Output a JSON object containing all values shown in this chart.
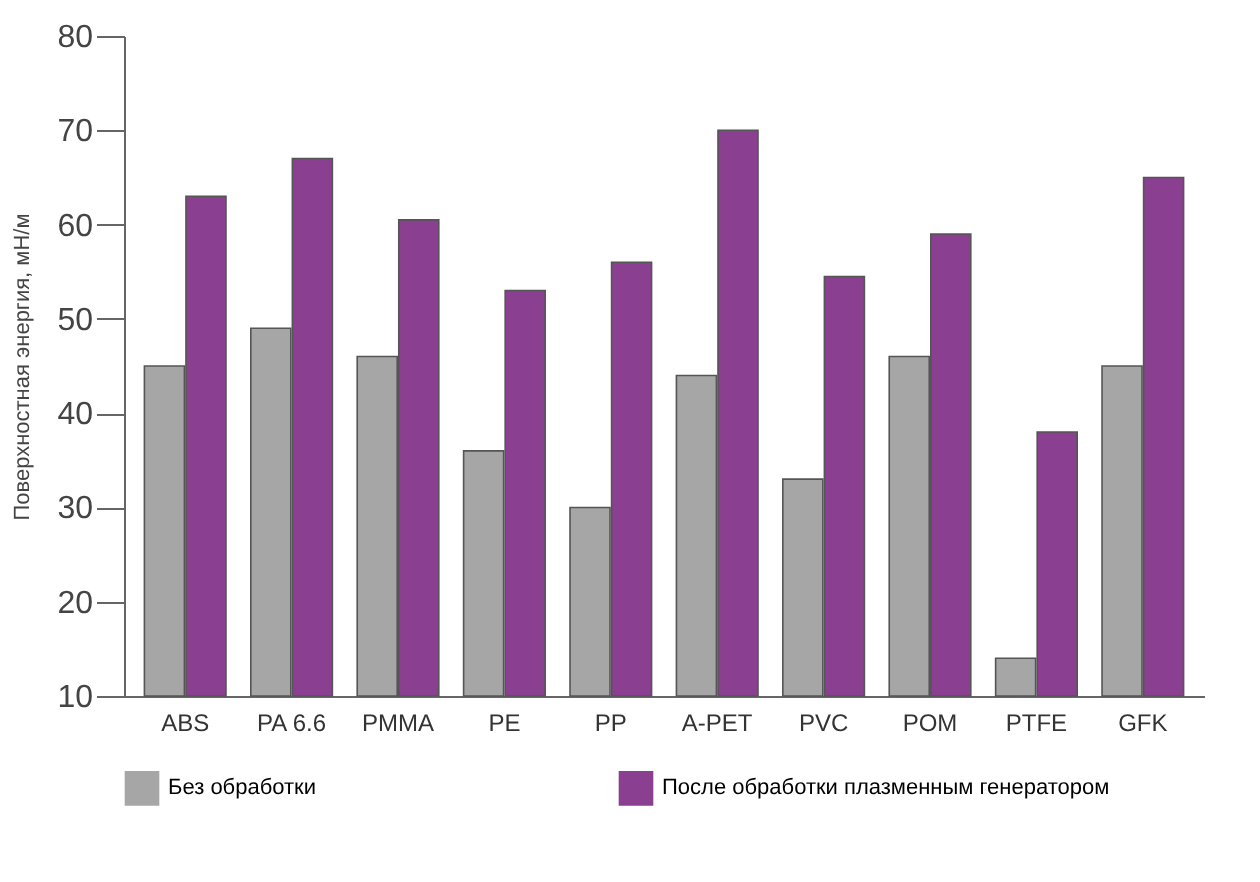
{
  "chart_data": {
    "type": "bar",
    "ylabel": "Поверхностная энергия, мН/м",
    "categories": [
      "ABS",
      "PA 6.6",
      "PMMA",
      "PE",
      "PP",
      "A-PET",
      "PVC",
      "POM",
      "PTFE",
      "GFK"
    ],
    "series": [
      {
        "name": "Без обработки",
        "color": "#a6a6a6",
        "values": [
          45,
          49,
          46,
          36,
          30,
          44,
          33,
          46,
          14,
          45
        ]
      },
      {
        "name": "После обработки плазменным генератором",
        "color": "#8b3f91",
        "values": [
          63,
          67,
          60.5,
          53,
          56,
          70,
          54.5,
          59,
          38,
          65
        ]
      }
    ],
    "ylim": [
      10,
      80
    ],
    "yticks": [
      10,
      20,
      30,
      40,
      50,
      60,
      70,
      80
    ],
    "grid": false,
    "legend": "bottom"
  }
}
